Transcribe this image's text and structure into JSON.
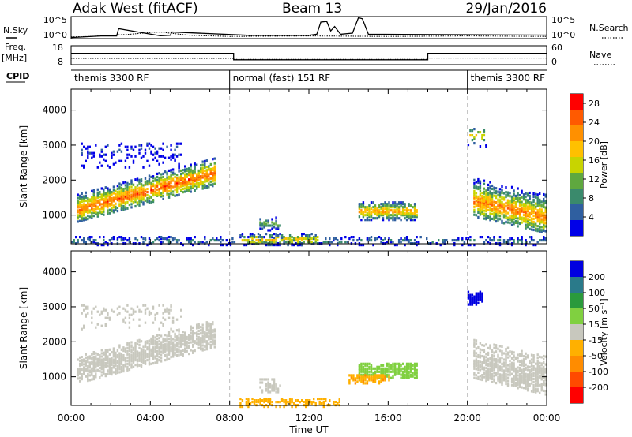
{
  "header": {
    "station": "Adak West (fitACF)",
    "beam": "Beam 13",
    "date": "29/Jan/2016"
  },
  "colors": {
    "power_scale": [
      "#0000e8",
      "#2f5fa0",
      "#3a8a6c",
      "#5fa83f",
      "#c8d400",
      "#ffc000",
      "#ff9000",
      "#ff5a00",
      "#ff0000"
    ],
    "velocity_scale": [
      "#ff0000",
      "#ff4a00",
      "#ff8c00",
      "#ffb000",
      "#c8c8be",
      "#80d040",
      "#2a9a3c",
      "#2a7a8a",
      "#0000e0"
    ]
  },
  "chart_data": [
    {
      "type": "line",
      "panel": "noise",
      "left_label": "N.Sky",
      "left_ticks": [
        "10^5",
        "10^0"
      ],
      "right_label": "N.Search",
      "right_ticks": [
        "10^5",
        "10^0"
      ],
      "series": [
        {
          "name": "N.Sky",
          "style": "solid",
          "x": [
            0,
            1.5,
            2.3,
            2.4,
            4.5,
            5.0,
            5.1,
            9.0,
            12.0,
            12.4,
            12.6,
            12.9,
            13.1,
            13.3,
            13.6,
            14.2,
            14.5,
            14.7,
            15.0,
            24.0
          ],
          "y": [
            0.05,
            0.12,
            0.12,
            0.45,
            0.13,
            0.15,
            0.3,
            0.15,
            0.15,
            0.2,
            0.75,
            0.78,
            0.35,
            0.55,
            0.2,
            0.25,
            0.95,
            0.9,
            0.2,
            0.16
          ]
        },
        {
          "name": "N.Search",
          "style": "dotted",
          "x": [
            0,
            1,
            2,
            3,
            4,
            4.5,
            5,
            6,
            8,
            12,
            16,
            20,
            24
          ],
          "y": [
            0.08,
            0.1,
            0.15,
            0.2,
            0.28,
            0.3,
            0.25,
            0.15,
            0.1,
            0.12,
            0.1,
            0.12,
            0.1
          ]
        }
      ],
      "xlim": [
        0,
        24
      ]
    },
    {
      "type": "line",
      "panel": "frequency",
      "left_label": "Freq.",
      "left_unit": "[MHz]",
      "left_ticks": [
        "18",
        "8"
      ],
      "ylim_left": [
        8,
        18
      ],
      "right_label": "Nave",
      "right_ticks": [
        "60",
        "0"
      ],
      "ylim_right": [
        0,
        60
      ],
      "series": [
        {
          "name": "Freq.",
          "style": "solid",
          "x": [
            0,
            8.2,
            8.2,
            18.0,
            18.0,
            24
          ],
          "y": [
            14,
            14,
            10.6,
            10.6,
            14,
            14
          ]
        },
        {
          "name": "Nave",
          "style": "dotted",
          "x": [
            0,
            8.2,
            8.2,
            18.0,
            18.0,
            24
          ],
          "y": [
            20,
            20,
            17,
            17,
            21,
            21
          ]
        }
      ],
      "xlim": [
        0,
        24
      ]
    },
    {
      "type": "table",
      "panel": "cpid",
      "label": "CPID",
      "segments": [
        {
          "start": 0,
          "end": 8,
          "text": "themis 3300 RF"
        },
        {
          "start": 8,
          "end": 20,
          "text": "normal (fast) 151 RF"
        },
        {
          "start": 20,
          "end": 24,
          "text": "themis 3300 RF"
        }
      ]
    },
    {
      "type": "heatmap",
      "panel": "power",
      "ylabel": "Slant Range [km]",
      "yticks": [
        1000,
        2000,
        3000,
        4000
      ],
      "ylim": [
        180,
        4600
      ],
      "xlim": [
        0,
        24
      ],
      "colorbar": {
        "label": "Power [dB]",
        "ticks": [
          4,
          8,
          12,
          16,
          20,
          24,
          28
        ],
        "range": [
          0,
          30
        ]
      },
      "mode_change_times": [
        8,
        20
      ],
      "regions": [
        {
          "t0": 0.3,
          "t1": 7.2,
          "r0": 850,
          "r1": 1650,
          "r_center": 1200,
          "r_slope": 150,
          "peak": 28,
          "density": 0.85
        },
        {
          "t0": 0.5,
          "t1": 5.5,
          "r0": 2400,
          "r1": 3100,
          "r_center": 2900,
          "r_slope": 0,
          "peak": 6,
          "density": 0.25
        },
        {
          "t0": 9.5,
          "t1": 10.5,
          "r0": 600,
          "r1": 1000,
          "r_center": 800,
          "r_slope": 0,
          "peak": 14,
          "density": 0.6
        },
        {
          "t0": 14.5,
          "t1": 17.5,
          "r0": 900,
          "r1": 1400,
          "r_center": 1150,
          "r_slope": 0,
          "peak": 24,
          "density": 0.9
        },
        {
          "t0": 20.3,
          "t1": 24,
          "r0": 1000,
          "r1": 2100,
          "r_center": 1450,
          "r_slope": -130,
          "peak": 26,
          "density": 0.8
        },
        {
          "t0": 20.0,
          "t1": 21.0,
          "r0": 3000,
          "r1": 3500,
          "r_center": 3300,
          "r_slope": 0,
          "peak": 20,
          "density": 0.4
        },
        {
          "t0": 0,
          "t1": 24,
          "r0": 180,
          "r1": 450,
          "r_center": 300,
          "r_slope": 0,
          "peak": 10,
          "density": 0.35
        },
        {
          "t0": 8.5,
          "t1": 12.5,
          "r0": 180,
          "r1": 500,
          "r_center": 330,
          "r_slope": 0,
          "peak": 22,
          "density": 0.6
        }
      ]
    },
    {
      "type": "heatmap",
      "panel": "velocity",
      "ylabel": "Slant Range [km]",
      "yticks": [
        1000,
        2000,
        3000,
        4000
      ],
      "ylim": [
        180,
        4600
      ],
      "xlim": [
        0,
        24
      ],
      "xlabel": "Time UT",
      "xticks": [
        "00:00",
        "04:00",
        "08:00",
        "12:00",
        "16:00",
        "20:00",
        "00:00"
      ],
      "colorbar": {
        "label": "Velocity [m s⁻¹]",
        "ticks": [
          -200,
          -100,
          -50,
          -15,
          15,
          50,
          100,
          200
        ]
      },
      "mode_change_times": [
        8,
        20
      ],
      "regions": [
        {
          "t0": 0.3,
          "t1": 7.2,
          "r0": 850,
          "r1": 1650,
          "r_center": 1200,
          "r_slope": 150,
          "velocity": 0,
          "density": 0.85
        },
        {
          "t0": 0.5,
          "t1": 5.5,
          "r0": 2400,
          "r1": 3100,
          "r_center": 2900,
          "r_slope": 0,
          "velocity": 0,
          "density": 0.2
        },
        {
          "t0": 9.5,
          "t1": 10.5,
          "r0": 600,
          "r1": 1000,
          "r_center": 800,
          "r_slope": 0,
          "velocity": 0,
          "density": 0.6
        },
        {
          "t0": 14.5,
          "t1": 17.5,
          "r0": 1000,
          "r1": 1450,
          "r_center": 1250,
          "r_slope": 0,
          "velocity": 30,
          "density": 0.9
        },
        {
          "t0": 14.0,
          "t1": 16.0,
          "r0": 850,
          "r1": 1100,
          "r_center": 1000,
          "r_slope": 0,
          "velocity": -40,
          "density": 0.8
        },
        {
          "t0": 20.3,
          "t1": 24,
          "r0": 1000,
          "r1": 2100,
          "r_center": 1450,
          "r_slope": -130,
          "velocity": 0,
          "density": 0.8
        },
        {
          "t0": 20.0,
          "t1": 20.8,
          "r0": 3100,
          "r1": 3500,
          "r_center": 3300,
          "r_slope": 0,
          "velocity": 220,
          "density": 0.9
        },
        {
          "t0": 8.5,
          "t1": 13.5,
          "r0": 180,
          "r1": 450,
          "r_center": 320,
          "r_slope": 0,
          "velocity": -30,
          "density": 0.5
        }
      ]
    }
  ]
}
